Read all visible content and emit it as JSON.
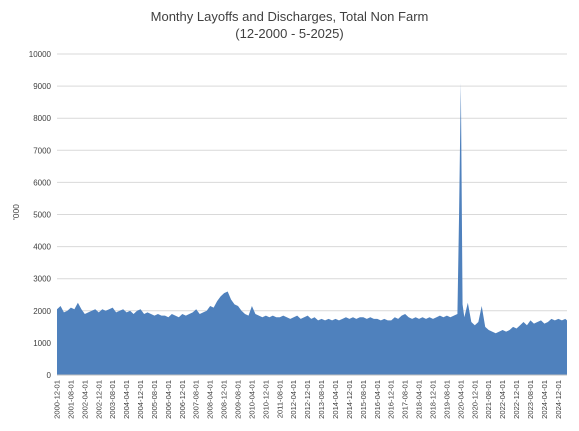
{
  "chart_data": {
    "type": "area",
    "title": "Monthy Layoffs and Discharges, Total Non Farm",
    "subtitle": "(12-2000 - 5-2025)",
    "xlabel": "",
    "ylabel": "'000",
    "ylim": [
      0,
      10000
    ],
    "yticks": [
      0,
      1000,
      2000,
      3000,
      4000,
      5000,
      6000,
      7000,
      8000,
      9000,
      10000
    ],
    "grid": true,
    "legend": "none",
    "color": "#4f81bd",
    "xtick_labels": [
      "2000-12-01",
      "2001-08-01",
      "2002-04-01",
      "2002-12-01",
      "2003-08-01",
      "2004-04-01",
      "2004-12-01",
      "2005-08-01",
      "2006-04-01",
      "2006-12-01",
      "2007-08-01",
      "2008-04-01",
      "2008-12-01",
      "2009-08-01",
      "2010-04-01",
      "2010-12-01",
      "2011-08-01",
      "2012-04-01",
      "2012-12-01",
      "2013-08-01",
      "2014-04-01",
      "2014-12-01",
      "2015-08-01",
      "2016-04-01",
      "2016-12-01",
      "2017-08-01",
      "2018-04-01",
      "2018-12-01",
      "2019-08-01",
      "2020-04-01",
      "2020-12-01",
      "2021-08-01",
      "2022-04-01",
      "2022-12-01",
      "2023-08-01",
      "2024-04-01",
      "2024-12-01"
    ],
    "series": [
      {
        "name": "",
        "points": [
          [
            "2000-12-01",
            2050
          ],
          [
            "2001-02-01",
            2150
          ],
          [
            "2001-04-01",
            1950
          ],
          [
            "2001-06-01",
            2000
          ],
          [
            "2001-08-01",
            2100
          ],
          [
            "2001-10-01",
            2050
          ],
          [
            "2001-12-01",
            2250
          ],
          [
            "2002-02-01",
            2050
          ],
          [
            "2002-04-01",
            1900
          ],
          [
            "2002-06-01",
            1950
          ],
          [
            "2002-08-01",
            2000
          ],
          [
            "2002-10-01",
            2050
          ],
          [
            "2002-12-01",
            1950
          ],
          [
            "2003-02-01",
            2050
          ],
          [
            "2003-04-01",
            2000
          ],
          [
            "2003-06-01",
            2050
          ],
          [
            "2003-08-01",
            2100
          ],
          [
            "2003-10-01",
            1950
          ],
          [
            "2003-12-01",
            2000
          ],
          [
            "2004-02-01",
            2050
          ],
          [
            "2004-04-01",
            1950
          ],
          [
            "2004-06-01",
            2000
          ],
          [
            "2004-08-01",
            1900
          ],
          [
            "2004-10-01",
            2000
          ],
          [
            "2004-12-01",
            2050
          ],
          [
            "2005-02-01",
            1900
          ],
          [
            "2005-04-01",
            1950
          ],
          [
            "2005-06-01",
            1900
          ],
          [
            "2005-08-01",
            1850
          ],
          [
            "2005-10-01",
            1900
          ],
          [
            "2005-12-01",
            1850
          ],
          [
            "2006-02-01",
            1850
          ],
          [
            "2006-04-01",
            1800
          ],
          [
            "2006-06-01",
            1900
          ],
          [
            "2006-08-01",
            1850
          ],
          [
            "2006-10-01",
            1800
          ],
          [
            "2006-12-01",
            1900
          ],
          [
            "2007-02-01",
            1850
          ],
          [
            "2007-04-01",
            1900
          ],
          [
            "2007-06-01",
            1950
          ],
          [
            "2007-08-01",
            2050
          ],
          [
            "2007-10-01",
            1900
          ],
          [
            "2007-12-01",
            1950
          ],
          [
            "2008-02-01",
            2000
          ],
          [
            "2008-04-01",
            2150
          ],
          [
            "2008-06-01",
            2100
          ],
          [
            "2008-08-01",
            2300
          ],
          [
            "2008-10-01",
            2450
          ],
          [
            "2008-12-01",
            2550
          ],
          [
            "2009-02-01",
            2600
          ],
          [
            "2009-04-01",
            2350
          ],
          [
            "2009-06-01",
            2200
          ],
          [
            "2009-08-01",
            2150
          ],
          [
            "2009-10-01",
            2000
          ],
          [
            "2009-12-01",
            1900
          ],
          [
            "2010-02-01",
            1850
          ],
          [
            "2010-04-01",
            2150
          ],
          [
            "2010-06-01",
            1900
          ],
          [
            "2010-08-01",
            1850
          ],
          [
            "2010-10-01",
            1800
          ],
          [
            "2010-12-01",
            1850
          ],
          [
            "2011-02-01",
            1800
          ],
          [
            "2011-04-01",
            1850
          ],
          [
            "2011-06-01",
            1800
          ],
          [
            "2011-08-01",
            1800
          ],
          [
            "2011-10-01",
            1850
          ],
          [
            "2011-12-01",
            1800
          ],
          [
            "2012-02-01",
            1750
          ],
          [
            "2012-04-01",
            1800
          ],
          [
            "2012-06-01",
            1850
          ],
          [
            "2012-08-01",
            1750
          ],
          [
            "2012-10-01",
            1800
          ],
          [
            "2012-12-01",
            1850
          ],
          [
            "2013-02-01",
            1750
          ],
          [
            "2013-04-01",
            1800
          ],
          [
            "2013-06-01",
            1700
          ],
          [
            "2013-08-01",
            1750
          ],
          [
            "2013-10-01",
            1700
          ],
          [
            "2013-12-01",
            1750
          ],
          [
            "2014-02-01",
            1700
          ],
          [
            "2014-04-01",
            1750
          ],
          [
            "2014-06-01",
            1700
          ],
          [
            "2014-08-01",
            1750
          ],
          [
            "2014-10-01",
            1800
          ],
          [
            "2014-12-01",
            1750
          ],
          [
            "2015-02-01",
            1800
          ],
          [
            "2015-04-01",
            1750
          ],
          [
            "2015-06-01",
            1800
          ],
          [
            "2015-08-01",
            1800
          ],
          [
            "2015-10-01",
            1750
          ],
          [
            "2015-12-01",
            1800
          ],
          [
            "2016-02-01",
            1750
          ],
          [
            "2016-04-01",
            1750
          ],
          [
            "2016-06-01",
            1700
          ],
          [
            "2016-08-01",
            1750
          ],
          [
            "2016-10-01",
            1700
          ],
          [
            "2016-12-01",
            1700
          ],
          [
            "2017-02-01",
            1800
          ],
          [
            "2017-04-01",
            1750
          ],
          [
            "2017-06-01",
            1850
          ],
          [
            "2017-08-01",
            1900
          ],
          [
            "2017-10-01",
            1800
          ],
          [
            "2017-12-01",
            1750
          ],
          [
            "2018-02-01",
            1800
          ],
          [
            "2018-04-01",
            1750
          ],
          [
            "2018-06-01",
            1800
          ],
          [
            "2018-08-01",
            1750
          ],
          [
            "2018-10-01",
            1800
          ],
          [
            "2018-12-01",
            1750
          ],
          [
            "2019-02-01",
            1800
          ],
          [
            "2019-04-01",
            1850
          ],
          [
            "2019-06-01",
            1800
          ],
          [
            "2019-08-01",
            1850
          ],
          [
            "2019-10-01",
            1800
          ],
          [
            "2019-12-01",
            1850
          ],
          [
            "2020-02-01",
            1900
          ],
          [
            "2020-03-01",
            5000
          ],
          [
            "2020-04-01",
            9100
          ],
          [
            "2020-05-01",
            2200
          ],
          [
            "2020-06-01",
            1800
          ],
          [
            "2020-08-01",
            2250
          ],
          [
            "2020-10-01",
            1650
          ],
          [
            "2020-12-01",
            1550
          ],
          [
            "2021-02-01",
            1650
          ],
          [
            "2021-04-01",
            2150
          ],
          [
            "2021-06-01",
            1500
          ],
          [
            "2021-08-01",
            1400
          ],
          [
            "2021-10-01",
            1350
          ],
          [
            "2021-12-01",
            1300
          ],
          [
            "2022-02-01",
            1350
          ],
          [
            "2022-04-01",
            1400
          ],
          [
            "2022-06-01",
            1350
          ],
          [
            "2022-08-01",
            1400
          ],
          [
            "2022-10-01",
            1500
          ],
          [
            "2022-12-01",
            1450
          ],
          [
            "2023-02-01",
            1550
          ],
          [
            "2023-04-01",
            1650
          ],
          [
            "2023-06-01",
            1550
          ],
          [
            "2023-08-01",
            1700
          ],
          [
            "2023-10-01",
            1600
          ],
          [
            "2023-12-01",
            1650
          ],
          [
            "2024-02-01",
            1700
          ],
          [
            "2024-04-01",
            1600
          ],
          [
            "2024-06-01",
            1650
          ],
          [
            "2024-08-01",
            1750
          ],
          [
            "2024-10-01",
            1700
          ],
          [
            "2024-12-01",
            1750
          ],
          [
            "2025-02-01",
            1700
          ],
          [
            "2025-04-01",
            1750
          ],
          [
            "2025-05-01",
            1700
          ]
        ]
      }
    ]
  }
}
